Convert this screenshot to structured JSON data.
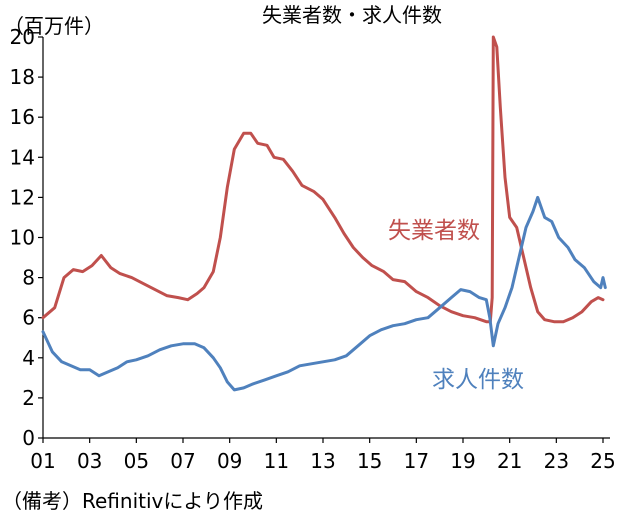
{
  "chart_data": {
    "type": "line",
    "title": "失業者数・求人件数",
    "unit": "（百万件）",
    "source": "（備考）Refinitivにより作成",
    "ylim": [
      0,
      20
    ],
    "yticks": [
      "0",
      "2",
      "4",
      "6",
      "8",
      "10",
      "12",
      "14",
      "16",
      "18",
      "20"
    ],
    "xlim": [
      2001,
      2025.3
    ],
    "xticks": [
      {
        "year": 2001,
        "label": "01"
      },
      {
        "year": 2003,
        "label": "03"
      },
      {
        "year": 2005,
        "label": "05"
      },
      {
        "year": 2007,
        "label": "07"
      },
      {
        "year": 2009,
        "label": "09"
      },
      {
        "year": 2011,
        "label": "11"
      },
      {
        "year": 2013,
        "label": "13"
      },
      {
        "year": 2015,
        "label": "15"
      },
      {
        "year": 2017,
        "label": "17"
      },
      {
        "year": 2019,
        "label": "19"
      },
      {
        "year": 2021,
        "label": "21"
      },
      {
        "year": 2023,
        "label": "23"
      },
      {
        "year": 2025,
        "label": "25"
      }
    ],
    "series": [
      {
        "name": "失業者数",
        "color": "#c0504d",
        "points": [
          [
            2001.0,
            6.0
          ],
          [
            2001.5,
            6.5
          ],
          [
            2001.9,
            8.0
          ],
          [
            2002.3,
            8.4
          ],
          [
            2002.7,
            8.3
          ],
          [
            2003.1,
            8.6
          ],
          [
            2003.5,
            9.1
          ],
          [
            2003.9,
            8.5
          ],
          [
            2004.3,
            8.2
          ],
          [
            2004.8,
            8.0
          ],
          [
            2005.3,
            7.7
          ],
          [
            2005.8,
            7.4
          ],
          [
            2006.3,
            7.1
          ],
          [
            2006.8,
            7.0
          ],
          [
            2007.2,
            6.9
          ],
          [
            2007.6,
            7.2
          ],
          [
            2007.9,
            7.5
          ],
          [
            2008.3,
            8.3
          ],
          [
            2008.6,
            10.0
          ],
          [
            2008.9,
            12.5
          ],
          [
            2009.2,
            14.4
          ],
          [
            2009.6,
            15.2
          ],
          [
            2009.9,
            15.2
          ],
          [
            2010.2,
            14.7
          ],
          [
            2010.6,
            14.6
          ],
          [
            2010.9,
            14.0
          ],
          [
            2011.3,
            13.9
          ],
          [
            2011.7,
            13.3
          ],
          [
            2012.1,
            12.6
          ],
          [
            2012.6,
            12.3
          ],
          [
            2013.0,
            11.9
          ],
          [
            2013.5,
            11.0
          ],
          [
            2013.9,
            10.2
          ],
          [
            2014.3,
            9.5
          ],
          [
            2014.7,
            9.0
          ],
          [
            2015.1,
            8.6
          ],
          [
            2015.6,
            8.3
          ],
          [
            2016.0,
            7.9
          ],
          [
            2016.5,
            7.8
          ],
          [
            2017.0,
            7.3
          ],
          [
            2017.5,
            7.0
          ],
          [
            2018.0,
            6.6
          ],
          [
            2018.5,
            6.3
          ],
          [
            2019.0,
            6.1
          ],
          [
            2019.5,
            6.0
          ],
          [
            2020.0,
            5.8
          ],
          [
            2020.17,
            5.8
          ],
          [
            2020.25,
            7.0
          ],
          [
            2020.3,
            20.0
          ],
          [
            2020.45,
            19.5
          ],
          [
            2020.6,
            16.5
          ],
          [
            2020.8,
            13.0
          ],
          [
            2021.0,
            11.0
          ],
          [
            2021.3,
            10.5
          ],
          [
            2021.6,
            9.0
          ],
          [
            2021.9,
            7.5
          ],
          [
            2022.2,
            6.3
          ],
          [
            2022.5,
            5.9
          ],
          [
            2022.9,
            5.8
          ],
          [
            2023.3,
            5.8
          ],
          [
            2023.7,
            6.0
          ],
          [
            2024.1,
            6.3
          ],
          [
            2024.5,
            6.8
          ],
          [
            2024.8,
            7.0
          ],
          [
            2025.0,
            6.9
          ]
        ]
      },
      {
        "name": "求人件数",
        "color": "#4f81bd",
        "points": [
          [
            2001.0,
            5.3
          ],
          [
            2001.4,
            4.3
          ],
          [
            2001.8,
            3.8
          ],
          [
            2002.2,
            3.6
          ],
          [
            2002.6,
            3.4
          ],
          [
            2003.0,
            3.4
          ],
          [
            2003.4,
            3.1
          ],
          [
            2003.8,
            3.3
          ],
          [
            2004.2,
            3.5
          ],
          [
            2004.6,
            3.8
          ],
          [
            2005.0,
            3.9
          ],
          [
            2005.5,
            4.1
          ],
          [
            2006.0,
            4.4
          ],
          [
            2006.5,
            4.6
          ],
          [
            2007.0,
            4.7
          ],
          [
            2007.5,
            4.7
          ],
          [
            2007.9,
            4.5
          ],
          [
            2008.3,
            4.0
          ],
          [
            2008.6,
            3.5
          ],
          [
            2008.9,
            2.8
          ],
          [
            2009.2,
            2.4
          ],
          [
            2009.6,
            2.5
          ],
          [
            2010.0,
            2.7
          ],
          [
            2010.5,
            2.9
          ],
          [
            2011.0,
            3.1
          ],
          [
            2011.5,
            3.3
          ],
          [
            2012.0,
            3.6
          ],
          [
            2012.5,
            3.7
          ],
          [
            2013.0,
            3.8
          ],
          [
            2013.5,
            3.9
          ],
          [
            2014.0,
            4.1
          ],
          [
            2014.5,
            4.6
          ],
          [
            2015.0,
            5.1
          ],
          [
            2015.5,
            5.4
          ],
          [
            2016.0,
            5.6
          ],
          [
            2016.5,
            5.7
          ],
          [
            2017.0,
            5.9
          ],
          [
            2017.5,
            6.0
          ],
          [
            2018.0,
            6.5
          ],
          [
            2018.5,
            7.0
          ],
          [
            2018.9,
            7.4
          ],
          [
            2019.3,
            7.3
          ],
          [
            2019.7,
            7.0
          ],
          [
            2020.0,
            6.9
          ],
          [
            2020.15,
            6.0
          ],
          [
            2020.3,
            4.6
          ],
          [
            2020.5,
            5.7
          ],
          [
            2020.8,
            6.5
          ],
          [
            2021.1,
            7.5
          ],
          [
            2021.4,
            9.0
          ],
          [
            2021.7,
            10.5
          ],
          [
            2022.0,
            11.3
          ],
          [
            2022.2,
            12.0
          ],
          [
            2022.5,
            11.0
          ],
          [
            2022.8,
            10.8
          ],
          [
            2023.1,
            10.0
          ],
          [
            2023.5,
            9.5
          ],
          [
            2023.8,
            8.9
          ],
          [
            2024.2,
            8.5
          ],
          [
            2024.6,
            7.8
          ],
          [
            2024.9,
            7.5
          ],
          [
            2025.0,
            8.0
          ],
          [
            2025.1,
            7.5
          ]
        ]
      }
    ],
    "annotations": [
      {
        "series": 0,
        "text": "失業者数"
      },
      {
        "series": 1,
        "text": "求人件数"
      }
    ]
  }
}
